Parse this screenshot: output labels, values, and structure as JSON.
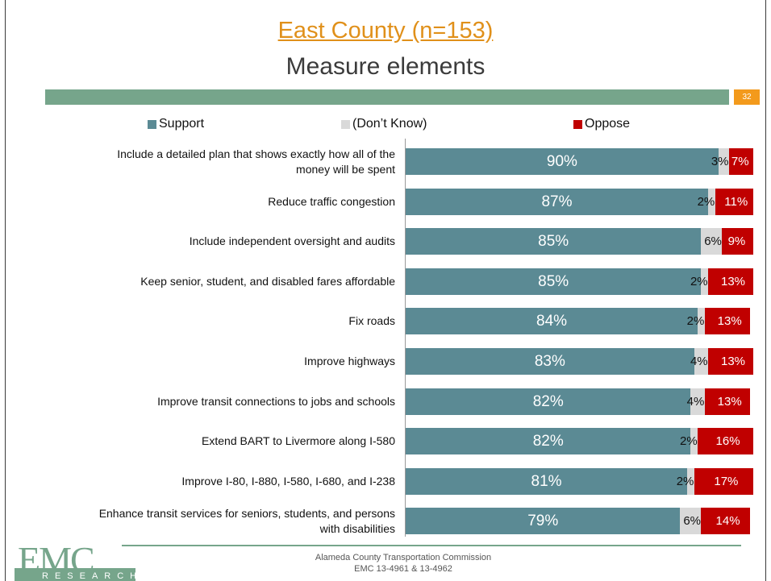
{
  "header": {
    "title": "East County (n=153)",
    "subtitle": "Measure elements",
    "page_number": "32"
  },
  "legend": {
    "support": "Support",
    "dont_know": "(Don’t Know)",
    "oppose": "Oppose"
  },
  "colors": {
    "support": "#5b8a94",
    "dont_know": "#d9d9d9",
    "oppose": "#c00000",
    "accent_band": "#76a58b",
    "title": "#e0901a"
  },
  "chart_data": {
    "type": "bar",
    "orientation": "horizontal",
    "stacked": true,
    "categories": [
      "Include a detailed plan that shows exactly how all of the money will be spent",
      "Reduce traffic congestion",
      "Include independent oversight and audits",
      "Keep senior, student, and disabled fares affordable",
      "Fix roads",
      "Improve highways",
      "Improve transit connections to jobs and schools",
      "Extend BART to Livermore along I-580",
      "Improve I-80, I-880, I-580, I-680, and I-238",
      "Enhance transit services for seniors, students, and persons with disabilities"
    ],
    "category_lines": [
      [
        "Include a detailed plan that shows exactly how all of the",
        "money will be spent"
      ],
      [
        "Reduce traffic congestion"
      ],
      [
        "Include independent oversight and audits"
      ],
      [
        "Keep senior, student, and disabled fares affordable"
      ],
      [
        "Fix roads"
      ],
      [
        "Improve highways"
      ],
      [
        "Improve transit connections to jobs and schools"
      ],
      [
        "Extend BART to Livermore along I-580"
      ],
      [
        "Improve I-80, I-880, I-580, I-680, and I-238"
      ],
      [
        "Enhance transit services for seniors, students, and persons",
        "with disabilities"
      ]
    ],
    "series": [
      {
        "name": "Support",
        "values": [
          90,
          87,
          85,
          85,
          84,
          83,
          82,
          82,
          81,
          79
        ],
        "labels": [
          "90%",
          "87%",
          "85%",
          "85%",
          "84%",
          "83%",
          "82%",
          "82%",
          "81%",
          "79%"
        ]
      },
      {
        "name": "(Don’t Know)",
        "values": [
          3,
          2,
          6,
          2,
          2,
          4,
          4,
          2,
          2,
          6
        ],
        "labels": [
          "3%",
          "2%",
          "6%",
          "2%",
          "2%",
          "4%",
          "4%",
          "2%",
          "2%",
          "6%"
        ]
      },
      {
        "name": "Oppose",
        "values": [
          7,
          11,
          9,
          13,
          13,
          13,
          13,
          16,
          17,
          14
        ],
        "labels": [
          "7%",
          "11%",
          "9%",
          "13%",
          "13%",
          "13%",
          "13%",
          "16%",
          "17%",
          "14%"
        ]
      }
    ],
    "xlim": [
      0,
      100
    ],
    "legend_position": "top"
  },
  "footer": {
    "line1": "Alameda County Transportation Commission",
    "line2": "EMC 13-4961 & 13-4962",
    "logo_text": "EMC",
    "logo_subtext": "RESEARCH"
  }
}
